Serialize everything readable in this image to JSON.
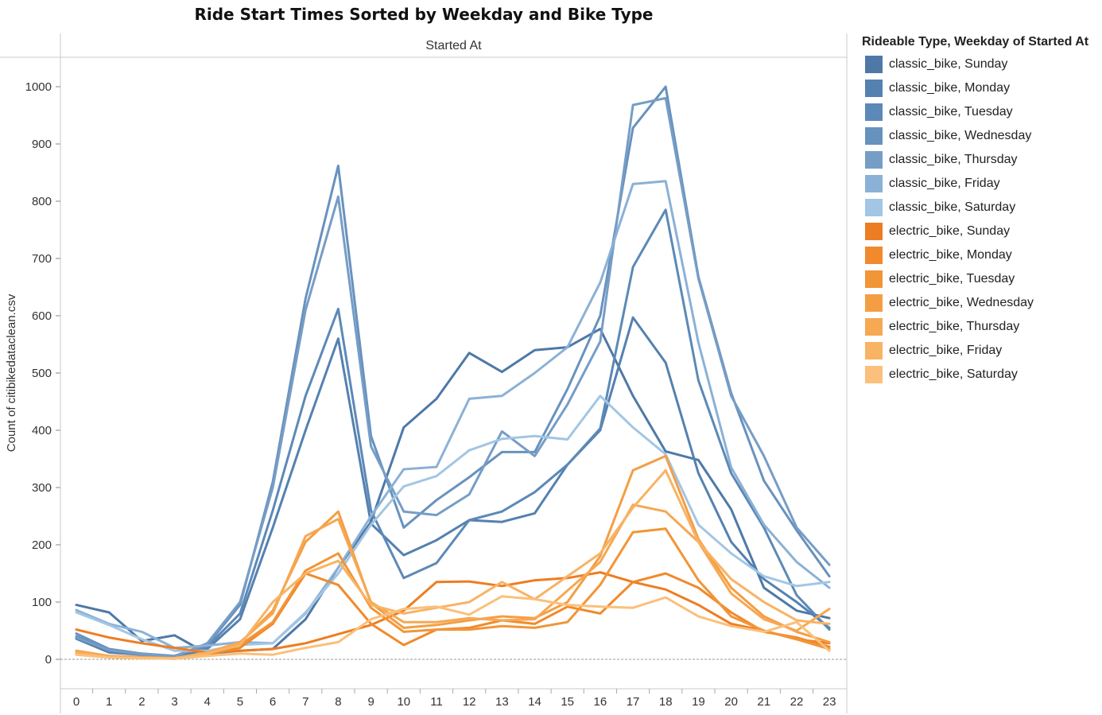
{
  "chart_data": {
    "type": "line",
    "title": "Ride Start Times Sorted by Weekday and Bike Type",
    "header": "Started At",
    "ylabel": "Count of citibikedataclean.csv",
    "xlabel": "",
    "x": [
      0,
      1,
      2,
      3,
      4,
      5,
      6,
      7,
      8,
      9,
      10,
      11,
      12,
      13,
      14,
      15,
      16,
      17,
      18,
      19,
      20,
      21,
      22,
      23
    ],
    "ylim": [
      -50,
      1050
    ],
    "yticks": [
      0,
      100,
      200,
      300,
      400,
      500,
      600,
      700,
      800,
      900,
      1000
    ],
    "grid": false,
    "zero_line": true,
    "legend_title": "Rideable Type, Weekday of Started At",
    "legend_position": "right",
    "series": [
      {
        "name": "classic_bike, Sunday",
        "color": "#4e79a7",
        "values": [
          95,
          82,
          32,
          42,
          10,
          15,
          18,
          70,
          160,
          240,
          405,
          455,
          535,
          502,
          540,
          545,
          577,
          460,
          363,
          348,
          262,
          125,
          85,
          72
        ]
      },
      {
        "name": "classic_bike, Monday",
        "color": "#5481b0",
        "values": [
          36,
          12,
          8,
          3,
          18,
          70,
          230,
          400,
          560,
          237,
          182,
          208,
          243,
          240,
          255,
          340,
          400,
          597,
          518,
          325,
          205,
          140,
          100,
          55
        ]
      },
      {
        "name": "classic_bike, Tuesday",
        "color": "#5c89b7",
        "values": [
          40,
          15,
          8,
          5,
          22,
          80,
          260,
          460,
          612,
          260,
          142,
          168,
          243,
          258,
          292,
          340,
          403,
          685,
          785,
          487,
          325,
          230,
          112,
          52
        ]
      },
      {
        "name": "classic_bike, Wednesday",
        "color": "#6892be",
        "values": [
          45,
          18,
          10,
          6,
          25,
          95,
          310,
          630,
          862,
          390,
          230,
          278,
          318,
          362,
          362,
          472,
          600,
          928,
          1000,
          668,
          465,
          312,
          225,
          145
        ]
      },
      {
        "name": "classic_bike, Thursday",
        "color": "#769dc6",
        "values": [
          38,
          16,
          9,
          5,
          28,
          100,
          300,
          610,
          808,
          372,
          258,
          252,
          288,
          398,
          355,
          445,
          555,
          968,
          980,
          665,
          460,
          355,
          230,
          165
        ]
      },
      {
        "name": "classic_bike, Friday",
        "color": "#8bb1d6",
        "values": [
          86,
          62,
          48,
          20,
          24,
          30,
          28,
          80,
          160,
          250,
          332,
          336,
          455,
          460,
          500,
          545,
          658,
          830,
          835,
          553,
          335,
          235,
          170,
          125
        ]
      },
      {
        "name": "classic_bike, Saturday",
        "color": "#a2c6e4",
        "values": [
          82,
          60,
          35,
          15,
          15,
          25,
          28,
          82,
          150,
          235,
          302,
          320,
          365,
          385,
          390,
          384,
          460,
          405,
          358,
          235,
          185,
          145,
          128,
          135
        ]
      },
      {
        "name": "electric_bike, Sunday",
        "color": "#ed7d22",
        "values": [
          52,
          38,
          28,
          20,
          12,
          15,
          18,
          28,
          44,
          60,
          85,
          135,
          136,
          128,
          138,
          142,
          152,
          135,
          122,
          95,
          62,
          50,
          35,
          28
        ]
      },
      {
        "name": "electric_bike, Monday",
        "color": "#f08a2c",
        "values": [
          10,
          4,
          3,
          1,
          8,
          20,
          62,
          150,
          130,
          62,
          25,
          52,
          55,
          68,
          62,
          92,
          80,
          135,
          150,
          125,
          82,
          48,
          38,
          22
        ]
      },
      {
        "name": "electric_bike, Tuesday",
        "color": "#f29537",
        "values": [
          13,
          5,
          3,
          1,
          10,
          25,
          65,
          155,
          185,
          90,
          48,
          52,
          52,
          58,
          55,
          65,
          130,
          222,
          228,
          138,
          75,
          50,
          35,
          18
        ]
      },
      {
        "name": "electric_bike, Wednesday",
        "color": "#f49e43",
        "values": [
          15,
          6,
          4,
          2,
          12,
          28,
          85,
          205,
          258,
          98,
          55,
          60,
          68,
          75,
          72,
          100,
          180,
          330,
          355,
          210,
          125,
          75,
          48,
          30
        ]
      },
      {
        "name": "electric_bike, Thursday",
        "color": "#f6a852",
        "values": [
          14,
          6,
          3,
          2,
          12,
          30,
          80,
          215,
          245,
          100,
          65,
          65,
          72,
          68,
          70,
          120,
          170,
          270,
          258,
          205,
          115,
          70,
          50,
          88
        ]
      },
      {
        "name": "electric_bike, Friday",
        "color": "#f8b364",
        "values": [
          10,
          4,
          2,
          2,
          10,
          25,
          100,
          150,
          172,
          95,
          80,
          90,
          100,
          135,
          105,
          145,
          185,
          265,
          330,
          205,
          140,
          100,
          68,
          62
        ]
      },
      {
        "name": "electric_bike, Saturday",
        "color": "#fbc07b",
        "values": [
          8,
          3,
          2,
          1,
          6,
          10,
          8,
          20,
          30,
          70,
          88,
          92,
          78,
          110,
          105,
          95,
          92,
          90,
          108,
          75,
          58,
          48,
          65,
          15
        ]
      }
    ]
  }
}
